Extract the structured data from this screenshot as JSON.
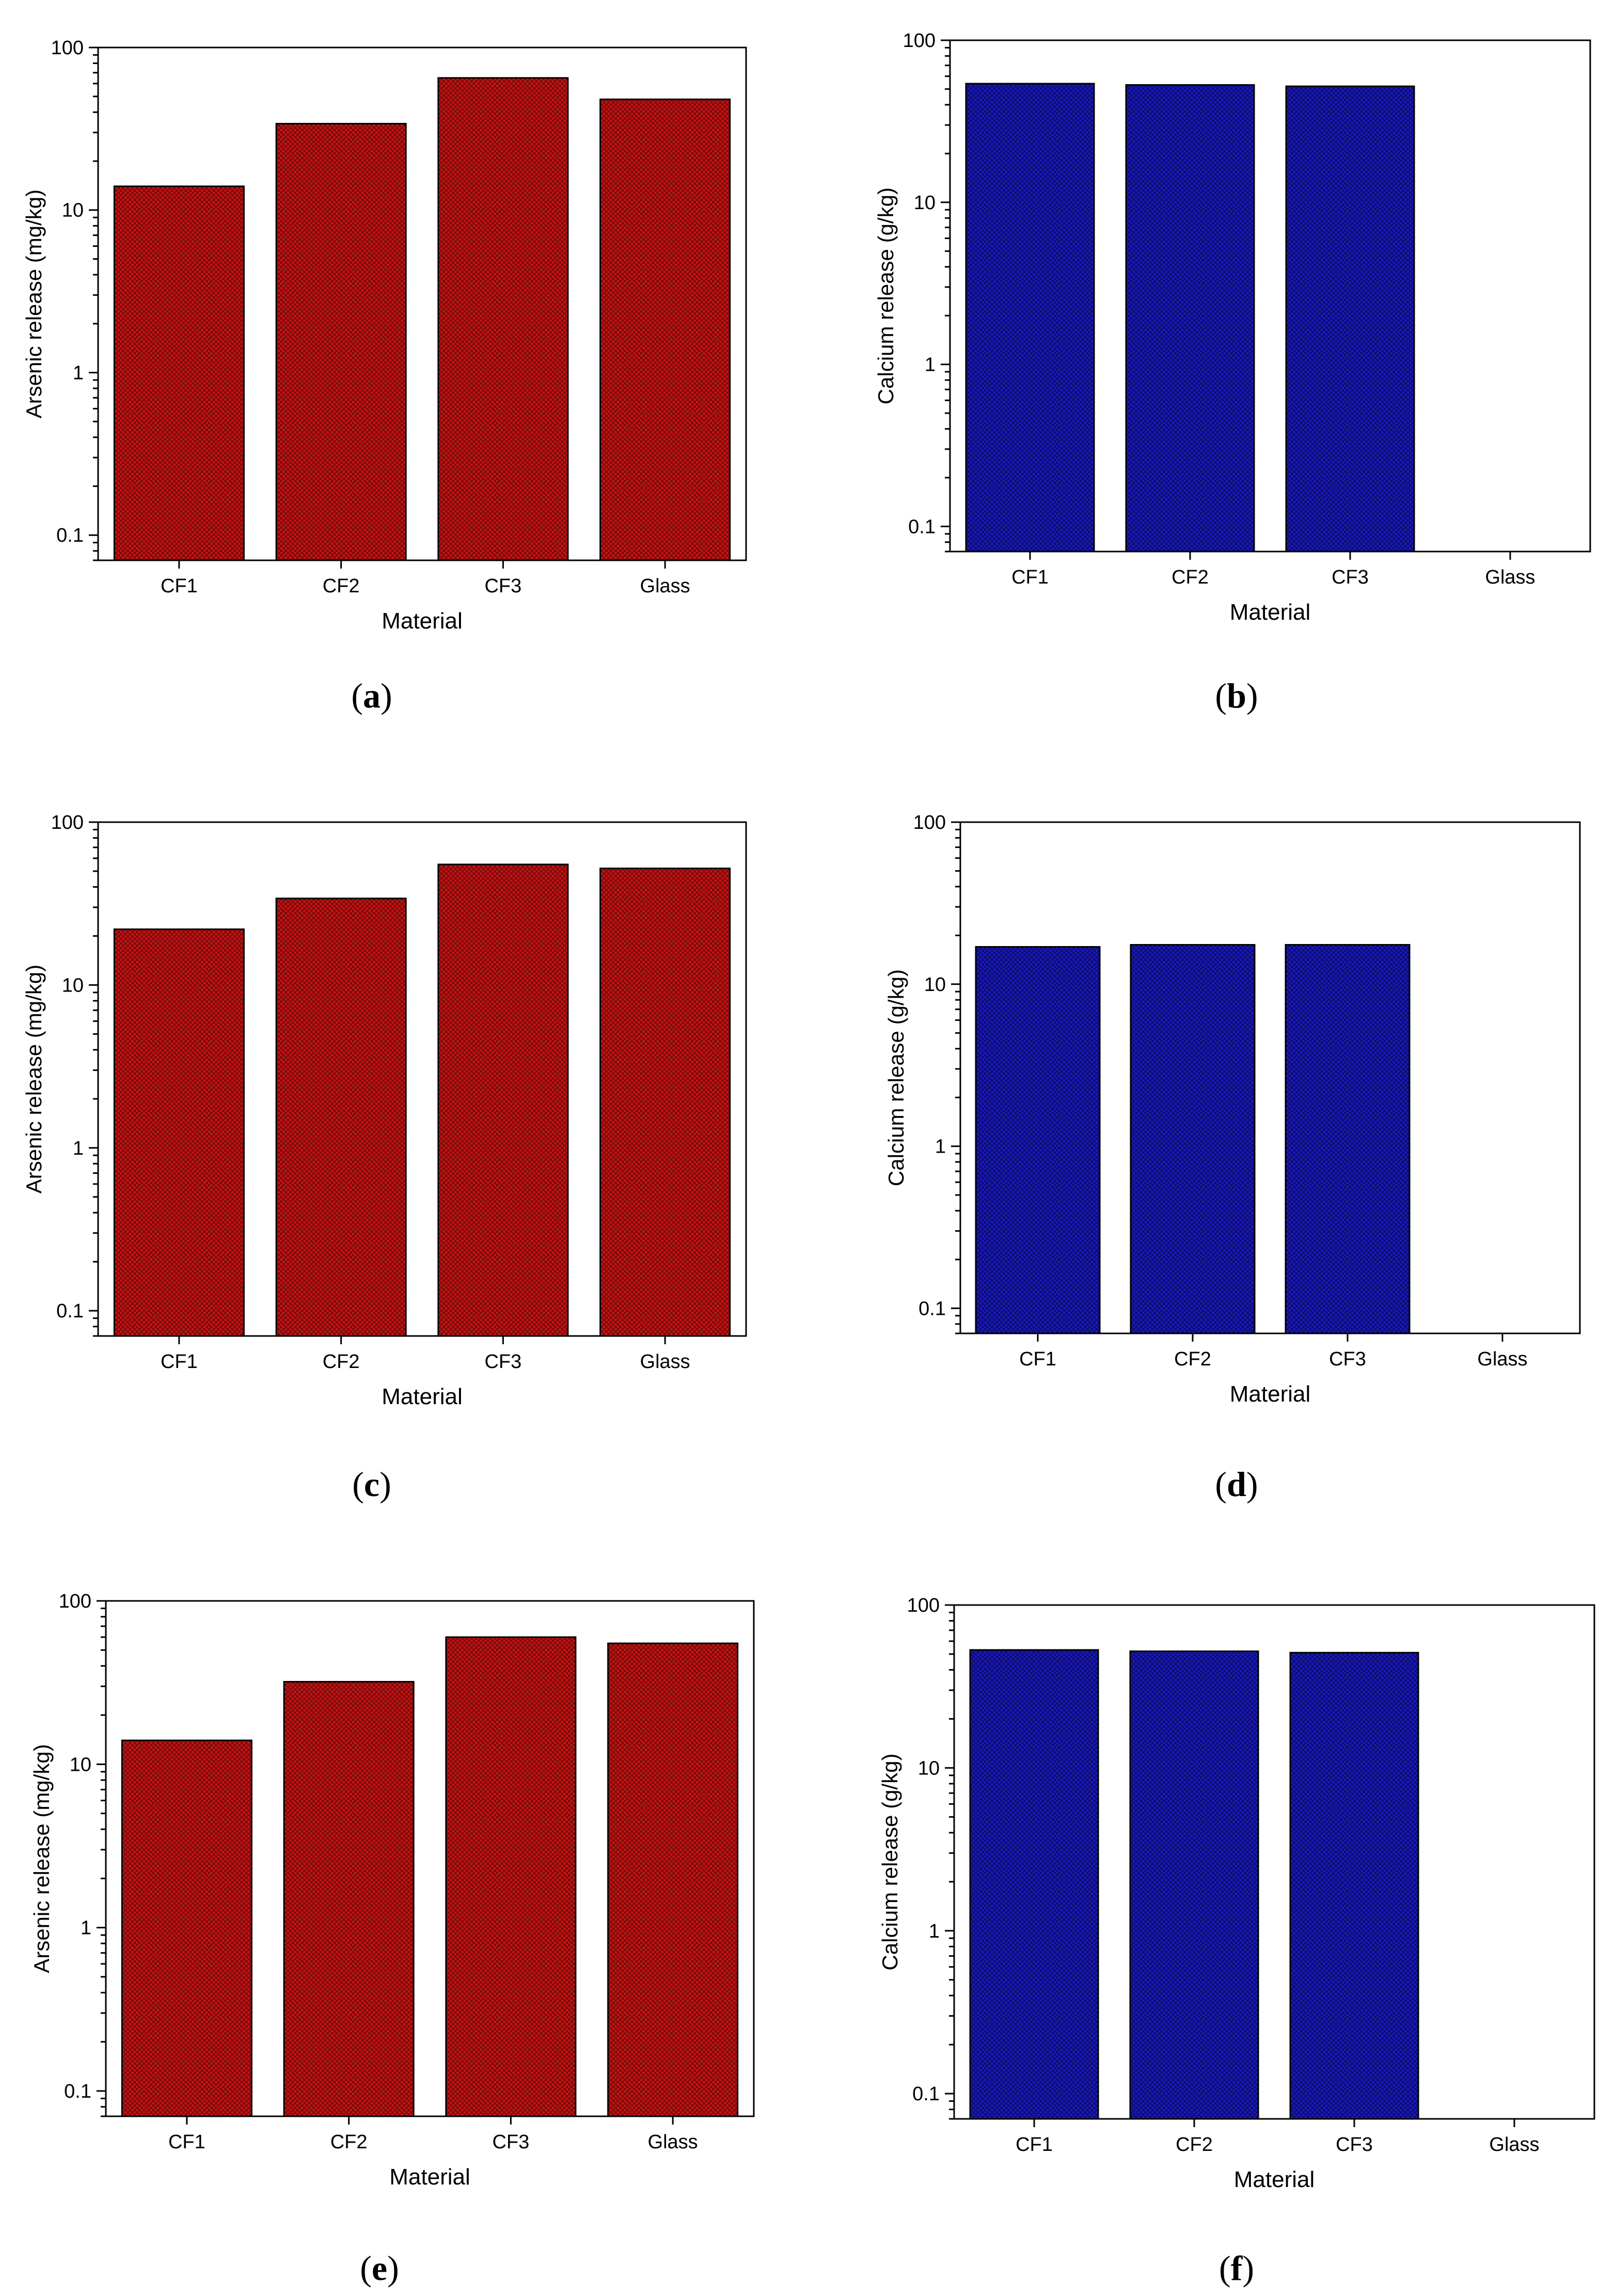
{
  "figure": {
    "colors": {
      "arsenic_fill": "#c41414",
      "arsenic_pattern": "#6e0808",
      "calcium_fill": "#1a1ab8",
      "calcium_pattern": "#0a0a66",
      "axis": "#000000",
      "background": "#ffffff"
    }
  },
  "chart_data": [
    {
      "panel": "a",
      "caption_letter": "a",
      "type": "bar",
      "title": "",
      "xlabel": "Material",
      "ylabel": "Arsenic release (mg/kg)",
      "yscale": "log",
      "ylim": [
        0.07,
        100
      ],
      "yticks": [
        0.1,
        1,
        10,
        100
      ],
      "ytick_labels": [
        "0.1",
        "1",
        "10",
        "100"
      ],
      "categories": [
        "CF1",
        "CF2",
        "CF3",
        "Glass"
      ],
      "values": [
        14,
        34,
        65,
        48
      ],
      "color_key": "arsenic"
    },
    {
      "panel": "b",
      "caption_letter": "b",
      "type": "bar",
      "title": "",
      "xlabel": "Material",
      "ylabel": "Calcium release (g/kg)",
      "yscale": "log",
      "ylim": [
        0.07,
        100
      ],
      "yticks": [
        0.1,
        1,
        10,
        100
      ],
      "ytick_labels": [
        "0.1",
        "1",
        "10",
        "100"
      ],
      "categories": [
        "CF1",
        "CF2",
        "CF3",
        "Glass"
      ],
      "values": [
        54,
        53,
        52,
        null
      ],
      "color_key": "calcium"
    },
    {
      "panel": "c",
      "caption_letter": "c",
      "type": "bar",
      "title": "",
      "xlabel": "Material",
      "ylabel": "Arsenic release (mg/kg)",
      "yscale": "log",
      "ylim": [
        0.07,
        100
      ],
      "yticks": [
        0.1,
        1,
        10,
        100
      ],
      "ytick_labels": [
        "0.1",
        "1",
        "10",
        "100"
      ],
      "categories": [
        "CF1",
        "CF2",
        "CF3",
        "Glass"
      ],
      "values": [
        22,
        34,
        55,
        52
      ],
      "color_key": "arsenic"
    },
    {
      "panel": "d",
      "caption_letter": "d",
      "type": "bar",
      "title": "",
      "xlabel": "Material",
      "ylabel": "Calcium release (g/kg)",
      "yscale": "log",
      "ylim": [
        0.07,
        100
      ],
      "yticks": [
        0.1,
        1,
        10,
        100
      ],
      "ytick_labels": [
        "0.1",
        "1",
        "10",
        "100"
      ],
      "categories": [
        "CF1",
        "CF2",
        "CF3",
        "Glass"
      ],
      "values": [
        17,
        17.5,
        17.5,
        null
      ],
      "color_key": "calcium"
    },
    {
      "panel": "e",
      "caption_letter": "e",
      "type": "bar",
      "title": "",
      "xlabel": "Material",
      "ylabel": "Arsenic release (mg/kg)",
      "yscale": "log",
      "ylim": [
        0.07,
        100
      ],
      "yticks": [
        0.1,
        1,
        10,
        100
      ],
      "ytick_labels": [
        "0.1",
        "1",
        "10",
        "100"
      ],
      "categories": [
        "CF1",
        "CF2",
        "CF3",
        "Glass"
      ],
      "values": [
        14,
        32,
        60,
        55
      ],
      "color_key": "arsenic"
    },
    {
      "panel": "f",
      "caption_letter": "f",
      "type": "bar",
      "title": "",
      "xlabel": "Material",
      "ylabel": "Calcium release (g/kg)",
      "yscale": "log",
      "ylim": [
        0.07,
        100
      ],
      "yticks": [
        0.1,
        1,
        10,
        100
      ],
      "ytick_labels": [
        "0.1",
        "1",
        "10",
        "100"
      ],
      "categories": [
        "CF1",
        "CF2",
        "CF3",
        "Glass"
      ],
      "values": [
        53,
        52,
        51,
        null
      ],
      "color_key": "calcium"
    }
  ]
}
